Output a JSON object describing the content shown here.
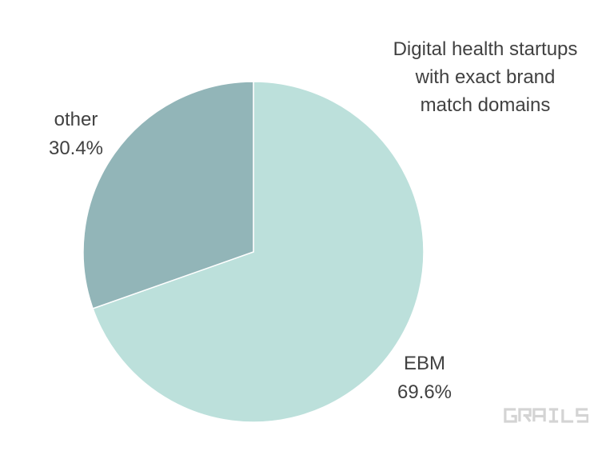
{
  "title": {
    "lines": [
      "Digital health startups",
      "with exact brand",
      "match domains"
    ]
  },
  "chart_data": {
    "type": "pie",
    "title": "Digital health startups with exact brand match domains",
    "slices": [
      {
        "label": "EBM",
        "value": 69.6,
        "percent_label": "69.6%",
        "color": "#bce0db"
      },
      {
        "label": "other",
        "value": 30.4,
        "percent_label": "30.4%",
        "color": "#92b5b8"
      }
    ],
    "start_angle": "12-oclock",
    "direction": "clockwise",
    "legend": "none",
    "label_position": "outside"
  },
  "watermark": {
    "text": "GRAILS",
    "color": "#d4d4d4"
  },
  "colors": {
    "background": "#ffffff",
    "text": "#414141",
    "slice_border": "#ffffff"
  }
}
